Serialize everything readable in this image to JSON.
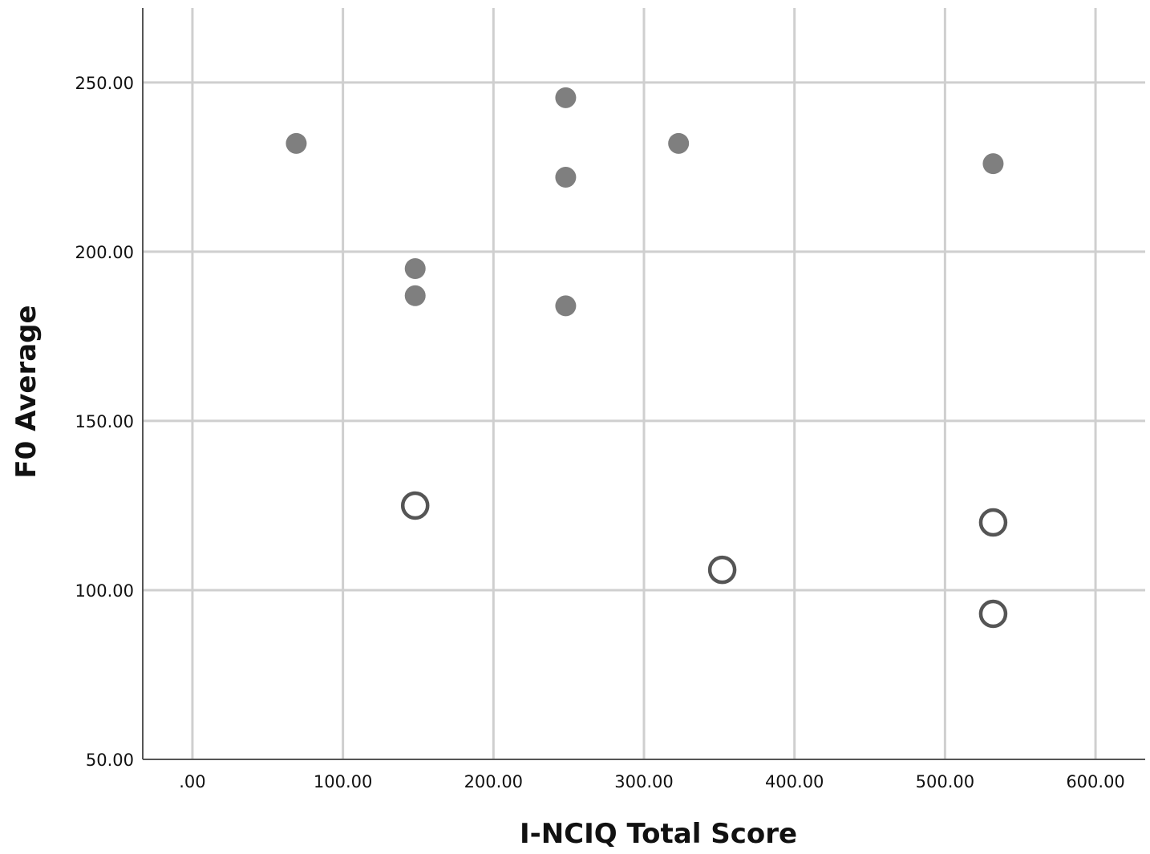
{
  "chart_data": {
    "type": "scatter",
    "title": "",
    "xlabel": "I-NCIQ Total Score",
    "ylabel": "F0 Average",
    "xlim": [
      -33,
      633
    ],
    "ylim": [
      50,
      272
    ],
    "x_ticks": [
      0,
      100,
      200,
      300,
      400,
      500,
      600
    ],
    "x_tick_labels": [
      ".00",
      "100.00",
      "200.00",
      "300.00",
      "400.00",
      "500.00",
      "600.00"
    ],
    "y_ticks": [
      50,
      100,
      150,
      200,
      250
    ],
    "y_tick_labels": [
      "50.00",
      "100.00",
      "150.00",
      "200.00",
      "250.00"
    ],
    "grid": true,
    "legend": "none",
    "series": [
      {
        "marker": "filled-circle",
        "color": "#7f7f7f",
        "points": [
          {
            "x": 69,
            "y": 232
          },
          {
            "x": 148,
            "y": 195
          },
          {
            "x": 148,
            "y": 187
          },
          {
            "x": 248,
            "y": 245.5
          },
          {
            "x": 248,
            "y": 222
          },
          {
            "x": 248,
            "y": 184
          },
          {
            "x": 323,
            "y": 232
          },
          {
            "x": 532,
            "y": 226
          }
        ]
      },
      {
        "marker": "open-circle",
        "color": "#555555",
        "points": [
          {
            "x": 148,
            "y": 125
          },
          {
            "x": 352,
            "y": 106
          },
          {
            "x": 532,
            "y": 120
          },
          {
            "x": 532,
            "y": 93
          }
        ]
      }
    ]
  }
}
